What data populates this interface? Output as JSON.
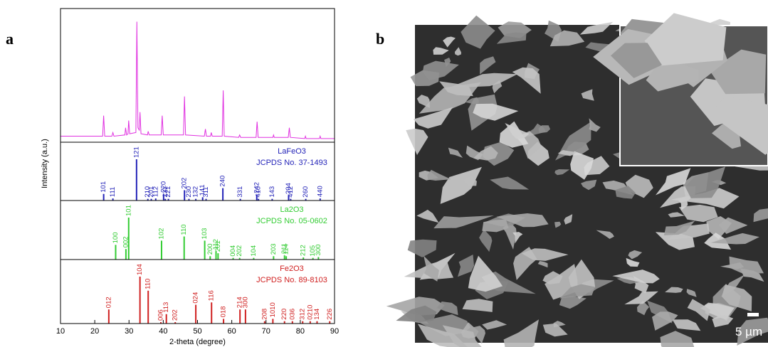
{
  "panel_labels": [
    "a",
    "b"
  ],
  "chart_data": {
    "type": "xrd",
    "xlabel": "2-theta (degree)",
    "ylabel": "Intensity (a.u.)",
    "xlim": [
      10,
      90
    ],
    "xticks": [
      10,
      20,
      30,
      40,
      50,
      60,
      70,
      80,
      90
    ],
    "pattern": {
      "color": "#e030e0",
      "ylim": [
        0,
        105
      ],
      "x": [
        10,
        22.3,
        22.6,
        22.9,
        25.0,
        25.3,
        25.6,
        28.8,
        29.0,
        29.3,
        29.7,
        29.9,
        30.2,
        32.0,
        32.3,
        32.6,
        33.0,
        33.2,
        33.5,
        35.4,
        35.6,
        35.9,
        39.4,
        39.7,
        40.0,
        45.9,
        46.2,
        46.5,
        52.0,
        52.3,
        52.6,
        53.8,
        54.0,
        54.3,
        57.2,
        57.5,
        57.8,
        62.0,
        62.3,
        62.6,
        67.1,
        67.4,
        67.7,
        72.0,
        72.2,
        72.4,
        76.5,
        76.8,
        77.1,
        81.3,
        81.5,
        81.7,
        85.6,
        85.8,
        86.0,
        90
      ],
      "values": [
        5,
        5,
        22,
        5,
        5,
        8,
        5,
        6,
        12,
        6,
        7,
        18,
        7,
        8,
        100,
        12,
        10,
        25,
        7,
        6,
        9,
        6,
        6,
        22,
        6,
        6,
        38,
        6,
        5,
        11,
        5,
        5,
        8,
        5,
        5,
        43,
        5,
        4,
        6,
        4,
        4,
        17,
        4,
        4,
        6,
        4,
        4,
        12,
        4,
        3,
        5,
        3,
        3,
        5,
        3,
        3
      ]
    },
    "references": [
      {
        "name": "LaFeO3",
        "card": "JCPDS No. 37-1493",
        "color": "#2323b8",
        "ylim": [
          0,
          100
        ],
        "x": [
          22.6,
          25.3,
          32.2,
          35.5,
          36.5,
          37.8,
          40.1,
          40.6,
          41.5,
          46.2,
          47.5,
          49.5,
          51.5,
          52.5,
          57.4,
          62.5,
          67.3,
          67.8,
          71.8,
          76.6,
          77.2,
          81.6,
          85.8
        ],
        "values": [
          16,
          5,
          100,
          4,
          4,
          5,
          16,
          4,
          4,
          25,
          4,
          4,
          8,
          4,
          30,
          4,
          14,
          4,
          4,
          12,
          4,
          4,
          5
        ],
        "labels": [
          "101",
          "111",
          "121",
          "210",
          "201",
          "112",
          "220",
          "131",
          "221",
          "202",
          "230",
          "132",
          "141",
          "311",
          "240",
          "331",
          "242",
          "410",
          "143",
          "204",
          "412",
          "260",
          "440"
        ]
      },
      {
        "name": "La2O3",
        "card": "JCPDS No. 05-0602",
        "color": "#33cc33",
        "ylim": [
          0,
          100
        ],
        "x": [
          26.1,
          29.1,
          29.9,
          39.5,
          46.1,
          52.1,
          53.7,
          55.4,
          56.0,
          60.4,
          62.3,
          66.4,
          72.2,
          75.4,
          75.9,
          80.9,
          83.7,
          85.3
        ],
        "values": [
          35,
          25,
          100,
          45,
          55,
          45,
          8,
          20,
          15,
          4,
          4,
          4,
          8,
          10,
          8,
          5,
          4,
          6
        ],
        "labels": [
          "100",
          "002",
          "101",
          "102",
          "110",
          "103",
          "200",
          "112",
          "201",
          "004",
          "202",
          "104",
          "203",
          "211",
          "114",
          "212",
          "105",
          "300"
        ]
      },
      {
        "name": "Fe2O3",
        "card": "JCPDS No. 89-8103",
        "color": "#d02020",
        "ylim": [
          0,
          100
        ],
        "x": [
          24.1,
          33.2,
          35.6,
          39.3,
          40.9,
          43.5,
          49.5,
          54.1,
          57.6,
          62.4,
          64.0,
          69.6,
          72.0,
          75.4,
          77.7,
          80.7,
          82.9,
          84.9,
          88.6
        ],
        "values": [
          30,
          100,
          70,
          3,
          20,
          3,
          40,
          45,
          10,
          30,
          30,
          5,
          10,
          5,
          5,
          5,
          5,
          5,
          5
        ],
        "labels": [
          "012",
          "104",
          "110",
          "006",
          "113",
          "202",
          "024",
          "116",
          "018",
          "214",
          "300",
          "208",
          "1010",
          "220",
          "036",
          "312",
          "0210",
          "134",
          "226"
        ]
      }
    ]
  },
  "sem": {
    "scale_bar": "5 µm"
  }
}
